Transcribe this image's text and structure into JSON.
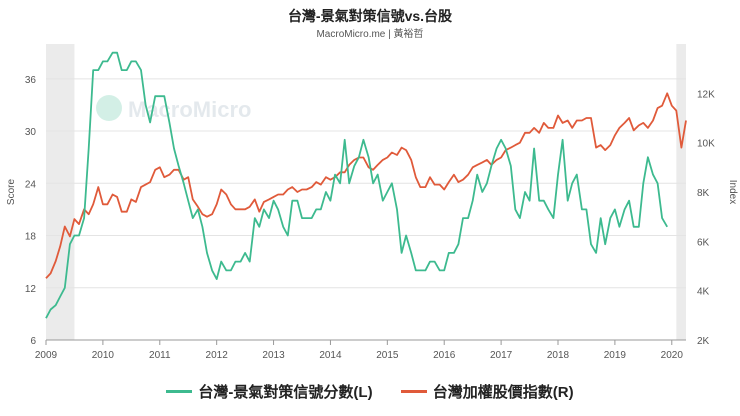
{
  "header": {
    "title": "台灣-景氣對策信號vs.台股",
    "subtitle": "MacroMicro.me | 黃裕哲",
    "watermark": "MacroMicro"
  },
  "chart_data": {
    "type": "line",
    "ylabel_left": "Score",
    "ylabel_right": "Index",
    "left_ticks": [
      "6",
      "12",
      "18",
      "24",
      "30",
      "36"
    ],
    "right_ticks": [
      "2K",
      "4K",
      "6K",
      "8K",
      "10K",
      "12K"
    ],
    "x_ticks": [
      "2009",
      "2010",
      "2011",
      "2012",
      "2013",
      "2014",
      "2015",
      "2016",
      "2017",
      "2018",
      "2019",
      "2020"
    ],
    "ylim_left": [
      6,
      40
    ],
    "ylim_right": [
      2000,
      14000
    ],
    "xlim": [
      2009.0,
      2020.25
    ],
    "shaded_ranges": [
      [
        2009.0,
        2009.5
      ],
      [
        2020.08,
        2020.25
      ]
    ],
    "series": [
      {
        "name": "台灣-景氣對策信號分數(L)",
        "axis": "left",
        "color": "#3dba8f",
        "points": [
          [
            2009.0,
            8.5
          ],
          [
            2009.08,
            9.5
          ],
          [
            2009.17,
            10
          ],
          [
            2009.25,
            11
          ],
          [
            2009.33,
            12
          ],
          [
            2009.42,
            17
          ],
          [
            2009.5,
            18
          ],
          [
            2009.58,
            18
          ],
          [
            2009.67,
            20
          ],
          [
            2009.75,
            28
          ],
          [
            2009.83,
            37
          ],
          [
            2009.92,
            37
          ],
          [
            2010.0,
            38
          ],
          [
            2010.08,
            38
          ],
          [
            2010.17,
            39
          ],
          [
            2010.25,
            39
          ],
          [
            2010.33,
            37
          ],
          [
            2010.42,
            37
          ],
          [
            2010.5,
            38
          ],
          [
            2010.58,
            38
          ],
          [
            2010.67,
            37
          ],
          [
            2010.75,
            33
          ],
          [
            2010.83,
            31
          ],
          [
            2010.92,
            34
          ],
          [
            2011.0,
            34
          ],
          [
            2011.08,
            34
          ],
          [
            2011.17,
            31
          ],
          [
            2011.25,
            28
          ],
          [
            2011.33,
            26
          ],
          [
            2011.42,
            24
          ],
          [
            2011.5,
            22
          ],
          [
            2011.58,
            20
          ],
          [
            2011.67,
            21
          ],
          [
            2011.75,
            19
          ],
          [
            2011.83,
            16
          ],
          [
            2011.92,
            14
          ],
          [
            2012.0,
            13
          ],
          [
            2012.08,
            15
          ],
          [
            2012.17,
            14
          ],
          [
            2012.25,
            14
          ],
          [
            2012.33,
            15
          ],
          [
            2012.42,
            15
          ],
          [
            2012.5,
            16
          ],
          [
            2012.58,
            15
          ],
          [
            2012.67,
            20
          ],
          [
            2012.75,
            19
          ],
          [
            2012.83,
            21
          ],
          [
            2012.92,
            20
          ],
          [
            2013.0,
            22
          ],
          [
            2013.08,
            21
          ],
          [
            2013.17,
            19
          ],
          [
            2013.25,
            18
          ],
          [
            2013.33,
            22
          ],
          [
            2013.42,
            22
          ],
          [
            2013.5,
            20
          ],
          [
            2013.58,
            20
          ],
          [
            2013.67,
            20
          ],
          [
            2013.75,
            21
          ],
          [
            2013.83,
            21
          ],
          [
            2013.92,
            23
          ],
          [
            2014.0,
            22
          ],
          [
            2014.08,
            25
          ],
          [
            2014.17,
            24
          ],
          [
            2014.25,
            29
          ],
          [
            2014.33,
            24
          ],
          [
            2014.42,
            26
          ],
          [
            2014.5,
            27
          ],
          [
            2014.58,
            29
          ],
          [
            2014.67,
            27
          ],
          [
            2014.75,
            24
          ],
          [
            2014.83,
            25
          ],
          [
            2014.92,
            22
          ],
          [
            2015.0,
            23
          ],
          [
            2015.08,
            24
          ],
          [
            2015.17,
            21
          ],
          [
            2015.25,
            16
          ],
          [
            2015.33,
            18
          ],
          [
            2015.42,
            16
          ],
          [
            2015.5,
            14
          ],
          [
            2015.58,
            14
          ],
          [
            2015.67,
            14
          ],
          [
            2015.75,
            15
          ],
          [
            2015.83,
            15
          ],
          [
            2015.92,
            14
          ],
          [
            2016.0,
            14
          ],
          [
            2016.08,
            16
          ],
          [
            2016.17,
            16
          ],
          [
            2016.25,
            17
          ],
          [
            2016.33,
            20
          ],
          [
            2016.42,
            20
          ],
          [
            2016.5,
            22
          ],
          [
            2016.58,
            25
          ],
          [
            2016.67,
            23
          ],
          [
            2016.75,
            24
          ],
          [
            2016.83,
            26
          ],
          [
            2016.92,
            28
          ],
          [
            2017.0,
            29
          ],
          [
            2017.08,
            28
          ],
          [
            2017.17,
            26
          ],
          [
            2017.25,
            21
          ],
          [
            2017.33,
            20
          ],
          [
            2017.42,
            23
          ],
          [
            2017.5,
            22
          ],
          [
            2017.58,
            28
          ],
          [
            2017.67,
            22
          ],
          [
            2017.75,
            22
          ],
          [
            2017.83,
            21
          ],
          [
            2017.92,
            20
          ],
          [
            2018.0,
            25
          ],
          [
            2018.08,
            29
          ],
          [
            2018.17,
            22
          ],
          [
            2018.25,
            24
          ],
          [
            2018.33,
            25
          ],
          [
            2018.42,
            21
          ],
          [
            2018.5,
            21
          ],
          [
            2018.58,
            17
          ],
          [
            2018.67,
            16
          ],
          [
            2018.75,
            20
          ],
          [
            2018.83,
            17
          ],
          [
            2018.92,
            20
          ],
          [
            2019.0,
            21
          ],
          [
            2019.08,
            19
          ],
          [
            2019.17,
            21
          ],
          [
            2019.25,
            22
          ],
          [
            2019.33,
            19
          ],
          [
            2019.42,
            19
          ],
          [
            2019.5,
            24
          ],
          [
            2019.58,
            27
          ],
          [
            2019.67,
            25
          ],
          [
            2019.75,
            24
          ],
          [
            2019.83,
            20
          ],
          [
            2019.92,
            19
          ]
        ]
      },
      {
        "name": "台灣加權股價指數(R)",
        "axis": "right",
        "color": "#e05a3a",
        "points": [
          [
            2009.0,
            4500
          ],
          [
            2009.08,
            4700
          ],
          [
            2009.17,
            5200
          ],
          [
            2009.25,
            5800
          ],
          [
            2009.33,
            6600
          ],
          [
            2009.42,
            6200
          ],
          [
            2009.5,
            6900
          ],
          [
            2009.58,
            6700
          ],
          [
            2009.67,
            7300
          ],
          [
            2009.75,
            7100
          ],
          [
            2009.83,
            7500
          ],
          [
            2009.92,
            8200
          ],
          [
            2010.0,
            7500
          ],
          [
            2010.08,
            7500
          ],
          [
            2010.17,
            7900
          ],
          [
            2010.25,
            7800
          ],
          [
            2010.33,
            7200
          ],
          [
            2010.42,
            7200
          ],
          [
            2010.5,
            7700
          ],
          [
            2010.58,
            7600
          ],
          [
            2010.67,
            8200
          ],
          [
            2010.75,
            8300
          ],
          [
            2010.83,
            8400
          ],
          [
            2010.92,
            8900
          ],
          [
            2011.0,
            9000
          ],
          [
            2011.08,
            8600
          ],
          [
            2011.17,
            8700
          ],
          [
            2011.25,
            8900
          ],
          [
            2011.33,
            8900
          ],
          [
            2011.42,
            8500
          ],
          [
            2011.5,
            8600
          ],
          [
            2011.58,
            7700
          ],
          [
            2011.67,
            7400
          ],
          [
            2011.75,
            7100
          ],
          [
            2011.83,
            7000
          ],
          [
            2011.92,
            7100
          ],
          [
            2012.0,
            7500
          ],
          [
            2012.08,
            8100
          ],
          [
            2012.17,
            7900
          ],
          [
            2012.25,
            7500
          ],
          [
            2012.33,
            7300
          ],
          [
            2012.42,
            7300
          ],
          [
            2012.5,
            7300
          ],
          [
            2012.58,
            7400
          ],
          [
            2012.67,
            7700
          ],
          [
            2012.75,
            7200
          ],
          [
            2012.83,
            7600
          ],
          [
            2012.92,
            7700
          ],
          [
            2013.0,
            7800
          ],
          [
            2013.08,
            7900
          ],
          [
            2013.17,
            7900
          ],
          [
            2013.25,
            8100
          ],
          [
            2013.33,
            8200
          ],
          [
            2013.42,
            8000
          ],
          [
            2013.5,
            8100
          ],
          [
            2013.58,
            8100
          ],
          [
            2013.67,
            8200
          ],
          [
            2013.75,
            8400
          ],
          [
            2013.83,
            8300
          ],
          [
            2013.92,
            8600
          ],
          [
            2014.0,
            8500
          ],
          [
            2014.08,
            8600
          ],
          [
            2014.17,
            8800
          ],
          [
            2014.25,
            8800
          ],
          [
            2014.33,
            9100
          ],
          [
            2014.42,
            9300
          ],
          [
            2014.5,
            9400
          ],
          [
            2014.58,
            9400
          ],
          [
            2014.67,
            9000
          ],
          [
            2014.75,
            8900
          ],
          [
            2014.83,
            9100
          ],
          [
            2014.92,
            9300
          ],
          [
            2015.0,
            9400
          ],
          [
            2015.08,
            9600
          ],
          [
            2015.17,
            9500
          ],
          [
            2015.25,
            9800
          ],
          [
            2015.33,
            9700
          ],
          [
            2015.42,
            9300
          ],
          [
            2015.5,
            8600
          ],
          [
            2015.58,
            8200
          ],
          [
            2015.67,
            8200
          ],
          [
            2015.75,
            8600
          ],
          [
            2015.83,
            8300
          ],
          [
            2015.92,
            8300
          ],
          [
            2016.0,
            8100
          ],
          [
            2016.08,
            8400
          ],
          [
            2016.17,
            8700
          ],
          [
            2016.25,
            8400
          ],
          [
            2016.33,
            8500
          ],
          [
            2016.42,
            8700
          ],
          [
            2016.5,
            9000
          ],
          [
            2016.58,
            9100
          ],
          [
            2016.67,
            9200
          ],
          [
            2016.75,
            9300
          ],
          [
            2016.83,
            9100
          ],
          [
            2016.92,
            9300
          ],
          [
            2017.0,
            9400
          ],
          [
            2017.08,
            9700
          ],
          [
            2017.17,
            9800
          ],
          [
            2017.25,
            9900
          ],
          [
            2017.33,
            10000
          ],
          [
            2017.42,
            10400
          ],
          [
            2017.5,
            10400
          ],
          [
            2017.58,
            10600
          ],
          [
            2017.67,
            10400
          ],
          [
            2017.75,
            10800
          ],
          [
            2017.83,
            10600
          ],
          [
            2017.92,
            10600
          ],
          [
            2018.0,
            11100
          ],
          [
            2018.08,
            10800
          ],
          [
            2018.17,
            10900
          ],
          [
            2018.25,
            10600
          ],
          [
            2018.33,
            10900
          ],
          [
            2018.42,
            10900
          ],
          [
            2018.5,
            11000
          ],
          [
            2018.58,
            11000
          ],
          [
            2018.67,
            9800
          ],
          [
            2018.75,
            9900
          ],
          [
            2018.83,
            9700
          ],
          [
            2018.92,
            9900
          ],
          [
            2019.0,
            10300
          ],
          [
            2019.08,
            10600
          ],
          [
            2019.17,
            10800
          ],
          [
            2019.25,
            11000
          ],
          [
            2019.33,
            10500
          ],
          [
            2019.42,
            10700
          ],
          [
            2019.5,
            10800
          ],
          [
            2019.58,
            10600
          ],
          [
            2019.67,
            10900
          ],
          [
            2019.75,
            11400
          ],
          [
            2019.83,
            11500
          ],
          [
            2019.92,
            12000
          ],
          [
            2020.0,
            11500
          ],
          [
            2020.08,
            11300
          ],
          [
            2020.17,
            9800
          ],
          [
            2020.25,
            10900
          ]
        ]
      }
    ]
  }
}
